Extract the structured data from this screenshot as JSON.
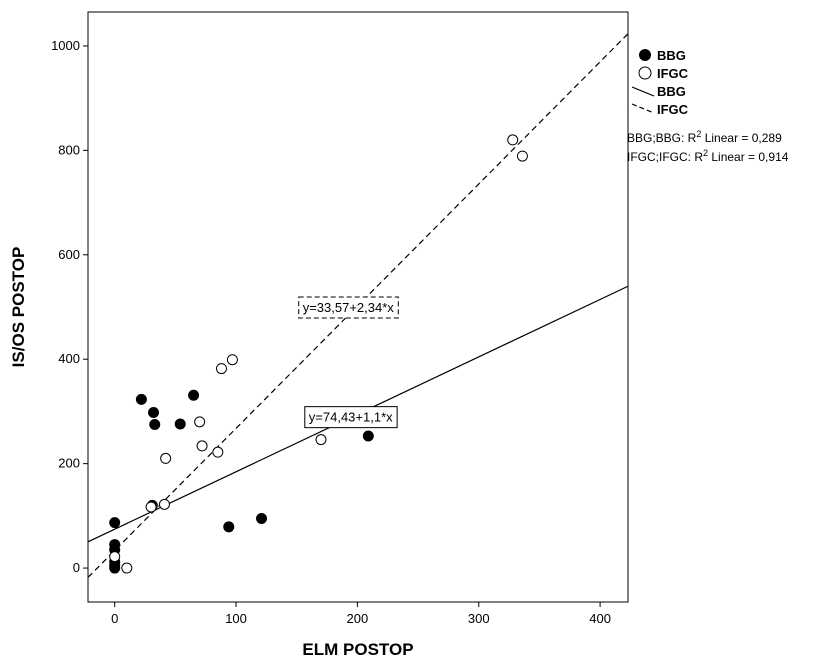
{
  "chart_data": {
    "type": "scatter",
    "xlabel": "ELM POSTOP",
    "ylabel": "IS/OS POSTOP",
    "xlim": [
      -22,
      423
    ],
    "ylim": [
      -65,
      1065
    ],
    "x_ticks": [
      "0",
      "100",
      "200",
      "300",
      "400"
    ],
    "x_tick_values": [
      0,
      100,
      200,
      300,
      400
    ],
    "y_ticks": [
      "0",
      "200",
      "400",
      "600",
      "800",
      "1000"
    ],
    "y_tick_values": [
      0,
      200,
      400,
      600,
      800,
      1000
    ],
    "grid": false,
    "legend": {
      "placement": "right",
      "items": [
        {
          "label": "BBG",
          "kind": "marker",
          "marker": "filled-circle"
        },
        {
          "label": "IFGC",
          "kind": "marker",
          "marker": "open-circle"
        },
        {
          "label": "BBG",
          "kind": "line",
          "style": "solid"
        },
        {
          "label": "IFGC",
          "kind": "line",
          "style": "dashed"
        }
      ]
    },
    "fit_stats": {
      "bbg": {
        "prefix": "BBG;BBG: R",
        "suffix": " Linear = 0,289"
      },
      "ifgc": {
        "prefix": "IFGC;IFGC: R",
        "suffix": " Linear = 0,914"
      },
      "superscript": "2"
    },
    "series": [
      {
        "name": "BBG",
        "marker": "filled-circle",
        "fit": {
          "intercept": 74.43,
          "slope": 1.1,
          "equation": "y=74,43+1,1*x",
          "line": "solid",
          "label_at": [
            155,
            290
          ]
        },
        "points": [
          {
            "x": 0,
            "y": 0
          },
          {
            "x": 0,
            "y": 5
          },
          {
            "x": 0,
            "y": 12
          },
          {
            "x": 0,
            "y": 35
          },
          {
            "x": 0,
            "y": 45
          },
          {
            "x": 0,
            "y": 87
          },
          {
            "x": 22,
            "y": 323
          },
          {
            "x": 32,
            "y": 298
          },
          {
            "x": 33,
            "y": 275
          },
          {
            "x": 31,
            "y": 120
          },
          {
            "x": 54,
            "y": 276
          },
          {
            "x": 65,
            "y": 331
          },
          {
            "x": 94,
            "y": 79
          },
          {
            "x": 121,
            "y": 95
          },
          {
            "x": 209,
            "y": 253
          }
        ]
      },
      {
        "name": "IFGC",
        "marker": "open-circle",
        "fit": {
          "intercept": 33.57,
          "slope": 2.34,
          "equation": "y=33,57+2,34*x",
          "line": "dashed",
          "label_at": [
            150,
            500
          ]
        },
        "points": [
          {
            "x": 10,
            "y": 0
          },
          {
            "x": 0,
            "y": 22
          },
          {
            "x": 30,
            "y": 117
          },
          {
            "x": 41,
            "y": 122
          },
          {
            "x": 42,
            "y": 210
          },
          {
            "x": 70,
            "y": 280
          },
          {
            "x": 72,
            "y": 234
          },
          {
            "x": 85,
            "y": 222
          },
          {
            "x": 88,
            "y": 382
          },
          {
            "x": 97,
            "y": 399
          },
          {
            "x": 170,
            "y": 246
          },
          {
            "x": 328,
            "y": 820
          },
          {
            "x": 336,
            "y": 789
          }
        ]
      }
    ]
  }
}
